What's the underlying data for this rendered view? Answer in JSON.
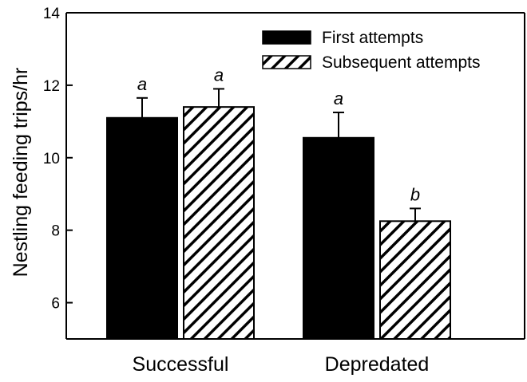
{
  "chart_data": {
    "type": "bar",
    "title": "",
    "xlabel": "",
    "ylabel": "Nestling feeding trips/hr",
    "ylim": [
      5,
      14
    ],
    "yticks": [
      6,
      8,
      10,
      12,
      14
    ],
    "categories": [
      "Successful",
      "Depredated"
    ],
    "series": [
      {
        "name": "First attempts",
        "fill": "solid",
        "color": "#000000",
        "values": [
          11.1,
          10.55
        ],
        "errors": [
          0.55,
          0.7
        ],
        "labels": [
          "a",
          "a"
        ]
      },
      {
        "name": "Subsequent attempts",
        "fill": "diagonal-hatch",
        "color": "#000000",
        "values": [
          11.4,
          8.25
        ],
        "errors": [
          0.5,
          0.35
        ],
        "labels": [
          "a",
          "b"
        ]
      }
    ],
    "grid": false,
    "legend": "top-right"
  }
}
